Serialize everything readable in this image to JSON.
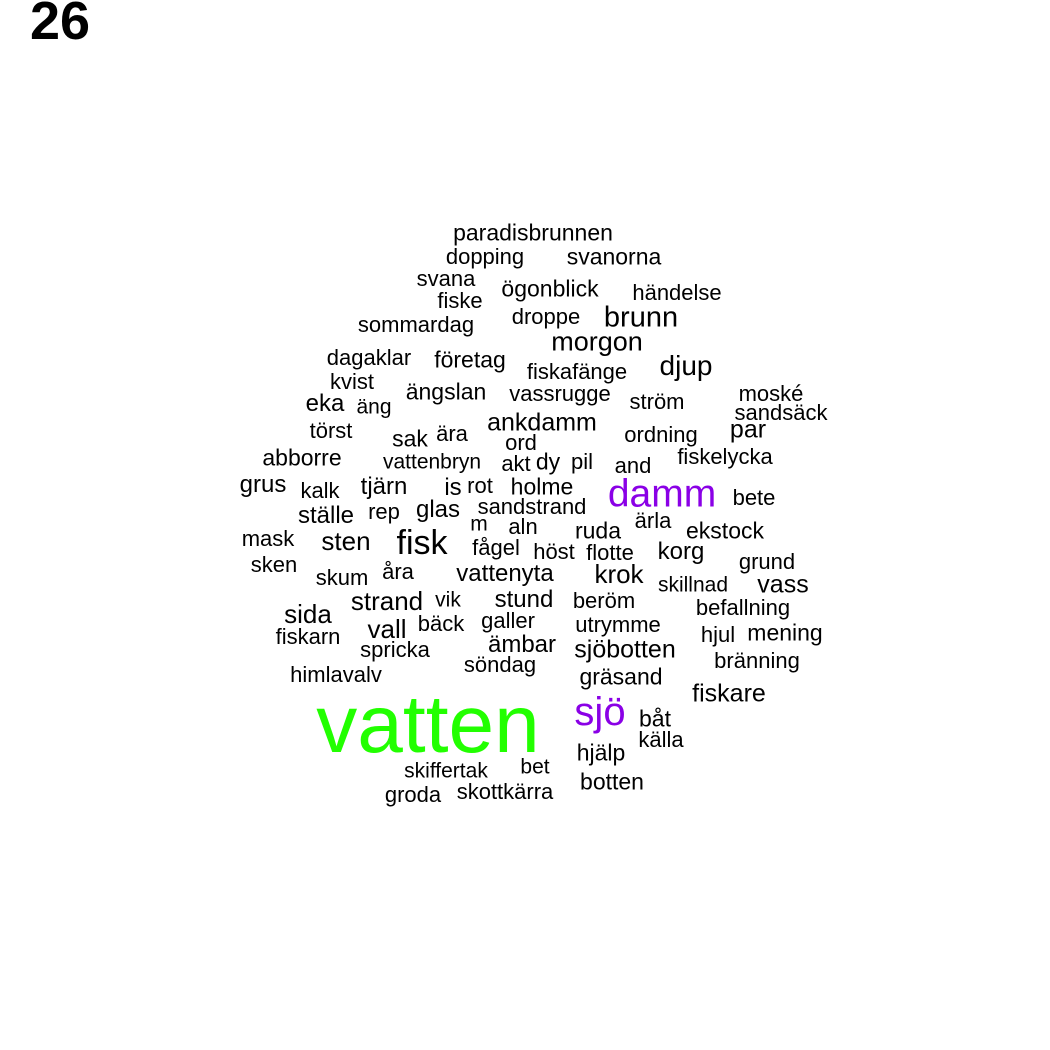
{
  "page_number": "26",
  "colors": {
    "default": "#000000",
    "top1": "#22ff00",
    "top2": "#8a00e6"
  },
  "words": [
    "paradisbrunnen",
    "dopping",
    "svanorna",
    "svana",
    "ögonblick",
    "händelse",
    "fiske",
    "sommardag",
    "droppe",
    "brunn",
    "morgon",
    "dagaklar",
    "företag",
    "djup",
    "fiskafänge",
    "kvist",
    "ängslan",
    "vassrugge",
    "moské",
    "eka",
    "äng",
    "ström",
    "sandsäck",
    "törst",
    "sak",
    "ära",
    "ankdamm",
    "ord",
    "ordning",
    "par",
    "abborre",
    "vattenbryn",
    "akt",
    "dy",
    "pil",
    "and",
    "fiskelycka",
    "grus",
    "kalk",
    "tjärn",
    "is",
    "rot",
    "holme",
    "damm",
    "bete",
    "ställe",
    "rep",
    "glas",
    "sandstrand",
    "ärla",
    "m",
    "aln",
    "ruda",
    "ekstock",
    "mask",
    "sten",
    "fisk",
    "fågel",
    "höst",
    "flotte",
    "korg",
    "sken",
    "skum",
    "åra",
    "vattenyta",
    "krok",
    "skillnad",
    "grund",
    "vass",
    "strand",
    "vik",
    "stund",
    "beröm",
    "sida",
    "befallning",
    "vall",
    "bäck",
    "galler",
    "utrymme",
    "hjul",
    "mening",
    "fiskarn",
    "ämbar",
    "spricka",
    "sjöbotten",
    "söndag",
    "bränning",
    "himlavalv",
    "gräsand",
    "fiskare",
    "vatten",
    "sjö",
    "båt",
    "källa",
    "hjälp",
    "skiffertak",
    "bet",
    "botten",
    "groda",
    "skottkärra"
  ]
}
